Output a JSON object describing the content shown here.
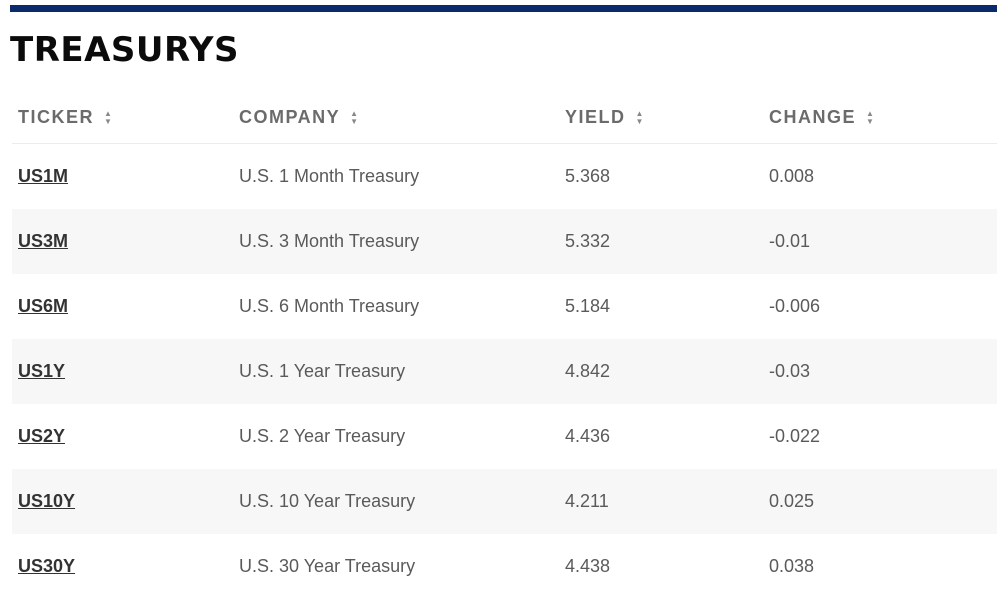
{
  "title": "TREASURYS",
  "headers": {
    "ticker": "TICKER",
    "company": "COMPANY",
    "yield": "YIELD",
    "change": "CHANGE"
  },
  "rows": [
    {
      "ticker": "US1M",
      "company": "U.S. 1 Month Treasury",
      "yield": "5.368",
      "change": "0.008"
    },
    {
      "ticker": "US3M",
      "company": "U.S. 3 Month Treasury",
      "yield": "5.332",
      "change": "-0.01"
    },
    {
      "ticker": "US6M",
      "company": "U.S. 6 Month Treasury",
      "yield": "5.184",
      "change": "-0.006"
    },
    {
      "ticker": "US1Y",
      "company": "U.S. 1 Year Treasury",
      "yield": "4.842",
      "change": "-0.03"
    },
    {
      "ticker": "US2Y",
      "company": "U.S. 2 Year Treasury",
      "yield": "4.436",
      "change": "-0.022"
    },
    {
      "ticker": "US10Y",
      "company": "U.S. 10 Year Treasury",
      "yield": "4.211",
      "change": "0.025"
    },
    {
      "ticker": "US30Y",
      "company": "U.S. 30 Year Treasury",
      "yield": "4.438",
      "change": "0.038"
    }
  ],
  "colors": {
    "accent_rule": "#0b2a6b",
    "row_alt": "#f7f7f7"
  },
  "icons": {
    "sort": "sort-arrows-icon"
  }
}
